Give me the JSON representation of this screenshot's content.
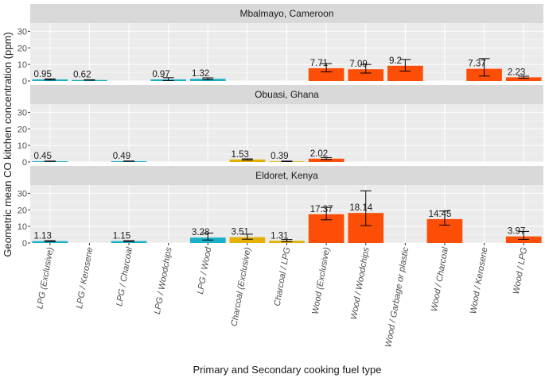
{
  "chart_data": {
    "type": "bar",
    "xlabel": "Primary and Secondary cooking fuel type",
    "ylabel": "Geometric mean CO kitchen concentration (ppm)",
    "ylim": [
      0,
      35
    ],
    "yticks": [
      0,
      10,
      20,
      30
    ],
    "categories": [
      "LPG (Exclusive)",
      "LPG / Kerosene",
      "LPG / Charcoal",
      "LPG / Woodchips",
      "LPG / Wood",
      "Charcoal (Exclusive)",
      "Charcoal / LPG",
      "Wood (Exclusive)",
      "Wood / Woodchips",
      "Wood / Garbage or plastic",
      "Wood / Charcoal",
      "Wood / Kerosene",
      "Wood / LPG"
    ],
    "fill_colors": {
      "LPG": "#1bb0c9",
      "Charcoal": "#e5b000",
      "Wood": "#fc4e07"
    },
    "panels": [
      {
        "title": "Mbalmayo, Cameroon",
        "bars": [
          {
            "category": "LPG (Exclusive)",
            "fuel": "LPG",
            "value": 0.95,
            "label": "0.95",
            "err": [
              0.6,
              1.3
            ]
          },
          {
            "category": "LPG / Kerosene",
            "fuel": "LPG",
            "value": 0.62,
            "label": "0.62",
            "err": [
              0.5,
              0.75
            ]
          },
          {
            "category": "LPG / Woodchips",
            "fuel": "LPG",
            "value": 0.97,
            "label": "0.97",
            "err": [
              0.3,
              2.0
            ]
          },
          {
            "category": "LPG / Wood",
            "fuel": "LPG",
            "value": 1.32,
            "label": "1.32",
            "err": [
              0.8,
              1.9
            ]
          },
          {
            "category": "Wood (Exclusive)",
            "fuel": "Wood",
            "value": 7.71,
            "label": "7.71",
            "err": [
              5.5,
              10.5
            ]
          },
          {
            "category": "Wood / Woodchips",
            "fuel": "Wood",
            "value": 7.09,
            "label": "7.09",
            "err": [
              4.8,
              10.0
            ]
          },
          {
            "category": "Wood / Garbage or plastic",
            "fuel": "Wood",
            "value": 9.2,
            "label": "9.2",
            "err": [
              6.0,
              13.0
            ]
          },
          {
            "category": "Wood / Kerosene",
            "fuel": "Wood",
            "value": 7.37,
            "label": "7.37",
            "err": [
              3.0,
              13.5
            ]
          },
          {
            "category": "Wood / LPG",
            "fuel": "Wood",
            "value": 2.23,
            "label": "2.23",
            "err": [
              1.7,
              2.9
            ]
          }
        ]
      },
      {
        "title": "Obuasi, Ghana",
        "bars": [
          {
            "category": "LPG (Exclusive)",
            "fuel": "LPG",
            "value": 0.45,
            "label": "0.45",
            "err": [
              0.35,
              0.55
            ]
          },
          {
            "category": "LPG / Charcoal",
            "fuel": "LPG",
            "value": 0.49,
            "label": "0.49",
            "err": [
              0.4,
              0.6
            ]
          },
          {
            "category": "Charcoal (Exclusive)",
            "fuel": "Charcoal",
            "value": 1.53,
            "label": "1.53",
            "err": [
              1.2,
              1.9
            ]
          },
          {
            "category": "Charcoal / LPG",
            "fuel": "Charcoal",
            "value": 0.39,
            "label": "0.39",
            "err": [
              0.25,
              0.55
            ]
          },
          {
            "category": "Wood (Exclusive)",
            "fuel": "Wood",
            "value": 2.02,
            "label": "2.02",
            "err": [
              1.5,
              2.7
            ]
          }
        ]
      },
      {
        "title": "Eldoret, Kenya",
        "bars": [
          {
            "category": "LPG (Exclusive)",
            "fuel": "LPG",
            "value": 1.13,
            "label": "1.13",
            "err": [
              0.9,
              1.4
            ]
          },
          {
            "category": "LPG / Charcoal",
            "fuel": "LPG",
            "value": 1.15,
            "label": "1.15",
            "err": [
              0.9,
              1.4
            ]
          },
          {
            "category": "LPG / Wood",
            "fuel": "LPG",
            "value": 3.28,
            "label": "3.28",
            "err": [
              1.8,
              6.0
            ]
          },
          {
            "category": "Charcoal (Exclusive)",
            "fuel": "Charcoal",
            "value": 3.51,
            "label": "3.51",
            "err": [
              2.3,
              5.3
            ]
          },
          {
            "category": "Charcoal / LPG",
            "fuel": "Charcoal",
            "value": 1.31,
            "label": "1.31",
            "err": [
              0.8,
              2.1
            ]
          },
          {
            "category": "Wood (Exclusive)",
            "fuel": "Wood",
            "value": 17.37,
            "label": "17.37",
            "err": [
              14.0,
              21.5
            ]
          },
          {
            "category": "Wood / Woodchips",
            "fuel": "Wood",
            "value": 18.14,
            "label": "18.14",
            "err": [
              10.5,
              31.5
            ]
          },
          {
            "category": "Wood / Charcoal",
            "fuel": "Wood",
            "value": 14.45,
            "label": "14.45",
            "err": [
              10.8,
              19.3
            ]
          },
          {
            "category": "Wood / LPG",
            "fuel": "Wood",
            "value": 3.97,
            "label": "3.97",
            "err": [
              2.2,
              7.0
            ]
          }
        ]
      }
    ]
  }
}
